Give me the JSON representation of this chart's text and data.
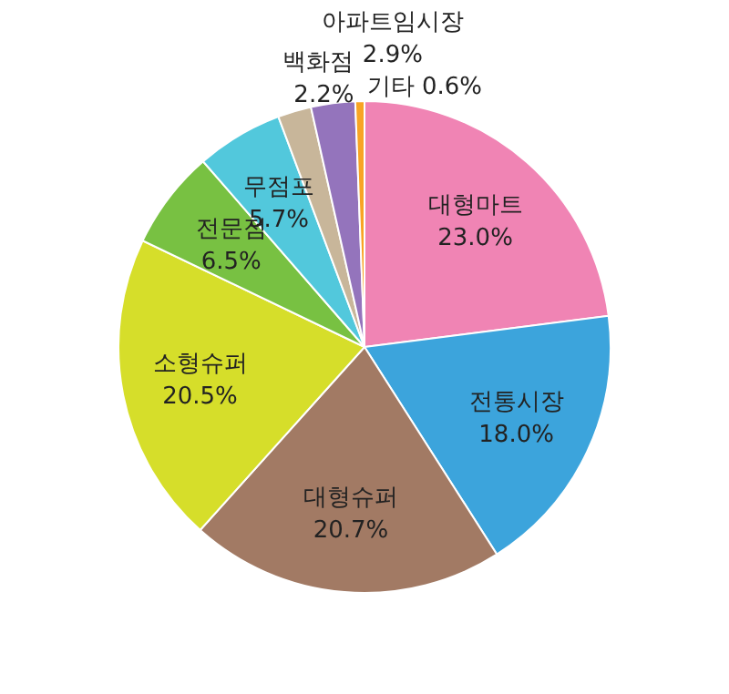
{
  "chart_data": {
    "type": "pie",
    "categories": [
      "대형마트",
      "전통시장",
      "대형슈퍼",
      "소형슈퍼",
      "전문점",
      "무점포",
      "백화점",
      "아파트임시장",
      "기타"
    ],
    "values": [
      23.0,
      18.0,
      20.7,
      20.5,
      6.5,
      5.7,
      2.2,
      2.9,
      0.6
    ],
    "value_labels": [
      "23.0%",
      "18.0%",
      "20.7%",
      "20.5%",
      "6.5%",
      "5.7%",
      "2.2%",
      "2.9%",
      "0.6%"
    ],
    "colors": [
      "#f084b4",
      "#3ca4dc",
      "#a27a64",
      "#d6de2a",
      "#78c142",
      "#52c8dc",
      "#c8b69a",
      "#9474bc",
      "#f8a424"
    ]
  }
}
